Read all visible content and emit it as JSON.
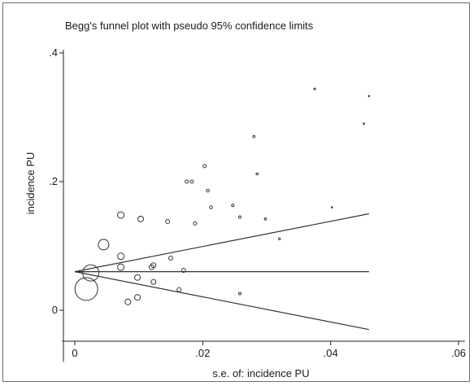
{
  "chart_data": {
    "type": "scatter",
    "title": "Begg's funnel plot with pseudo 95% confidence limits",
    "xlabel": "s.e. of: incidence PU",
    "ylabel": "incidence PU",
    "xlim": [
      -0.002,
      0.061
    ],
    "ylim": [
      -0.08,
      0.405
    ],
    "xticks": [
      0,
      0.02,
      0.04,
      0.06
    ],
    "xtick_labels": [
      "0",
      ".02",
      ".04",
      ".06"
    ],
    "yticks": [
      0,
      0.2,
      0.4
    ],
    "ytick_labels": [
      "0",
      ".2",
      ".4"
    ],
    "grid": false,
    "pooled_estimate": 0.06,
    "lines": [
      {
        "name": "pooled",
        "x": [
          0,
          0.046
        ],
        "y": [
          0.06,
          0.06
        ]
      },
      {
        "name": "upper-limit",
        "x": [
          0,
          0.046
        ],
        "y": [
          0.06,
          0.15
        ]
      },
      {
        "name": "lower-limit",
        "x": [
          0,
          0.046
        ],
        "y": [
          0.06,
          -0.03
        ]
      }
    ],
    "points": [
      {
        "x": 0.0018,
        "y": 0.033,
        "size": 14
      },
      {
        "x": 0.0025,
        "y": 0.058,
        "size": 10
      },
      {
        "x": 0.0045,
        "y": 0.102,
        "size": 6.5
      },
      {
        "x": 0.0072,
        "y": 0.148,
        "size": 4
      },
      {
        "x": 0.0072,
        "y": 0.084,
        "size": 4
      },
      {
        "x": 0.0072,
        "y": 0.067,
        "size": 4
      },
      {
        "x": 0.0083,
        "y": 0.013,
        "size": 3.5
      },
      {
        "x": 0.0098,
        "y": 0.051,
        "size": 3.5
      },
      {
        "x": 0.0098,
        "y": 0.02,
        "size": 3.5
      },
      {
        "x": 0.0103,
        "y": 0.142,
        "size": 3.5
      },
      {
        "x": 0.012,
        "y": 0.067,
        "size": 3
      },
      {
        "x": 0.0123,
        "y": 0.07,
        "size": 3
      },
      {
        "x": 0.0123,
        "y": 0.044,
        "size": 3
      },
      {
        "x": 0.0145,
        "y": 0.138,
        "size": 2.5
      },
      {
        "x": 0.015,
        "y": 0.081,
        "size": 2.5
      },
      {
        "x": 0.0163,
        "y": 0.032,
        "size": 2.5
      },
      {
        "x": 0.017,
        "y": 0.062,
        "size": 2.5
      },
      {
        "x": 0.0175,
        "y": 0.2,
        "size": 2
      },
      {
        "x": 0.0183,
        "y": 0.2,
        "size": 2
      },
      {
        "x": 0.0188,
        "y": 0.135,
        "size": 2
      },
      {
        "x": 0.0203,
        "y": 0.224,
        "size": 2
      },
      {
        "x": 0.0208,
        "y": 0.186,
        "size": 1.8
      },
      {
        "x": 0.0213,
        "y": 0.16,
        "size": 1.8
      },
      {
        "x": 0.0247,
        "y": 0.163,
        "size": 1.5
      },
      {
        "x": 0.0258,
        "y": 0.145,
        "size": 1.5
      },
      {
        "x": 0.0258,
        "y": 0.026,
        "size": 1.5
      },
      {
        "x": 0.028,
        "y": 0.27,
        "size": 1.3
      },
      {
        "x": 0.0285,
        "y": 0.212,
        "size": 1.3
      },
      {
        "x": 0.0298,
        "y": 0.142,
        "size": 1.3
      },
      {
        "x": 0.032,
        "y": 0.111,
        "size": 1.2
      },
      {
        "x": 0.0375,
        "y": 0.344,
        "size": 1.1
      },
      {
        "x": 0.0402,
        "y": 0.16,
        "size": 0.8
      },
      {
        "x": 0.0452,
        "y": 0.29,
        "size": 0.9
      },
      {
        "x": 0.046,
        "y": 0.333,
        "size": 0.8
      }
    ]
  }
}
